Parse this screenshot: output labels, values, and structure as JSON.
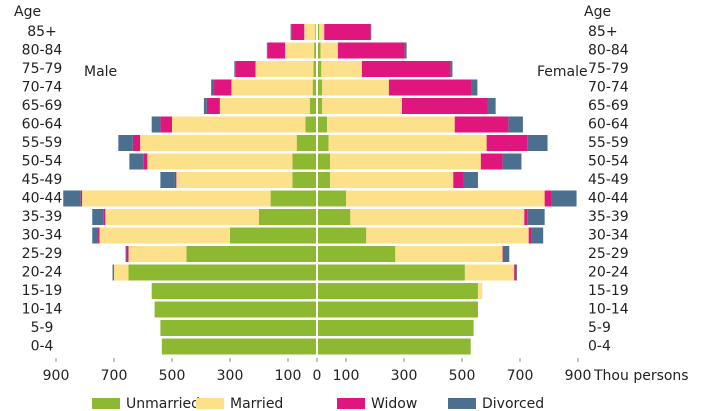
{
  "chart_data": {
    "type": "pyramid",
    "y_label": "Age",
    "x_label": "Thou persons",
    "left_label": "Male",
    "right_label": "Female",
    "categories": [
      "85+",
      "80-84",
      "75-79",
      "70-74",
      "65-69",
      "60-64",
      "55-59",
      "50-54",
      "45-49",
      "40-44",
      "35-39",
      "30-34",
      "25-29",
      "20-24",
      "15-19",
      "10-14",
      "5-9",
      "0-4"
    ],
    "xlim": [
      -900,
      900
    ],
    "xticks": [
      {
        "value": -900,
        "label": "900"
      },
      {
        "value": -700,
        "label": "700"
      },
      {
        "value": -500,
        "label": "500"
      },
      {
        "value": -300,
        "label": "300"
      },
      {
        "value": -100,
        "label": "100"
      },
      0,
      100,
      300,
      500,
      700,
      900
    ],
    "series": [
      {
        "name": "Unmarried",
        "color": "#8db832",
        "male": [
          6,
          10,
          12,
          15,
          25,
          40,
          70,
          85,
          85,
          160,
          200,
          300,
          450,
          650,
          570,
          560,
          540,
          535
        ],
        "female": [
          8,
          12,
          15,
          18,
          18,
          35,
          40,
          45,
          45,
          100,
          115,
          170,
          270,
          510,
          555,
          555,
          540,
          530
        ]
      },
      {
        "name": "Married",
        "color": "#fde08a",
        "male": [
          38,
          100,
          200,
          280,
          310,
          460,
          540,
          500,
          400,
          650,
          530,
          450,
          200,
          50,
          0,
          0,
          0,
          0
        ],
        "female": [
          17,
          60,
          140,
          230,
          275,
          440,
          545,
          520,
          425,
          685,
          600,
          560,
          370,
          170,
          15,
          0,
          0,
          0
        ]
      },
      {
        "name": "Widow",
        "color": "#e0157d",
        "male": [
          45,
          60,
          70,
          60,
          45,
          40,
          25,
          12,
          5,
          5,
          5,
          5,
          7,
          3,
          0,
          0,
          0,
          0
        ],
        "female": [
          160,
          230,
          305,
          285,
          295,
          185,
          140,
          75,
          35,
          25,
          10,
          10,
          3,
          7,
          0,
          0,
          0,
          0
        ]
      },
      {
        "name": "Divorced",
        "color": "#4b6f8e",
        "male": [
          2,
          3,
          3,
          10,
          10,
          30,
          50,
          50,
          50,
          60,
          40,
          20,
          3,
          2,
          0,
          0,
          0,
          0
        ],
        "female": [
          2,
          7,
          7,
          20,
          28,
          50,
          70,
          65,
          50,
          85,
          60,
          40,
          20,
          3,
          0,
          0,
          0,
          0
        ]
      }
    ]
  }
}
